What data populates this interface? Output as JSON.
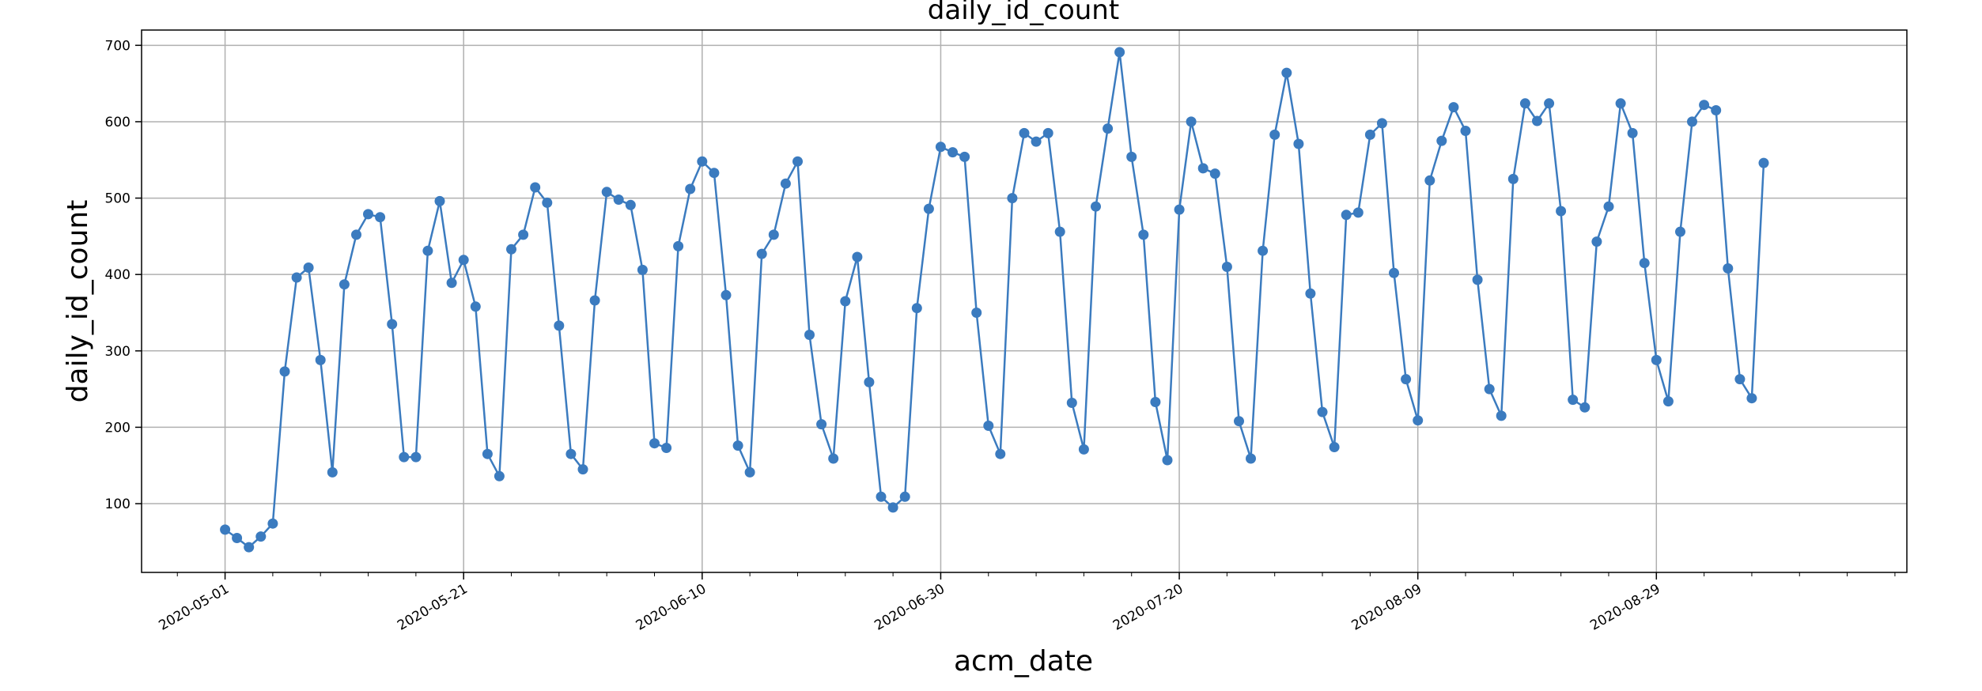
{
  "chart_data": {
    "type": "line",
    "title": "daily_id_count",
    "xlabel": "acm_date",
    "ylabel": "daily_id_count",
    "grid": true,
    "legend": false,
    "marker": "circle",
    "color": "#3b7bbf",
    "x_start": "2020-05-01",
    "xlim": [
      "2020-04-24",
      "2020-09-19"
    ],
    "ylim": [
      10,
      720
    ],
    "x_ticks": [
      "2020-05-01",
      "2020-05-21",
      "2020-06-10",
      "2020-06-30",
      "2020-07-20",
      "2020-08-09",
      "2020-08-29"
    ],
    "y_ticks": [
      100,
      200,
      300,
      400,
      500,
      600,
      700
    ],
    "series": [
      {
        "values": [
          66,
          55,
          43,
          57,
          74,
          273,
          396,
          409,
          288,
          141,
          387,
          452,
          479,
          475,
          335,
          161,
          161,
          431,
          496,
          389,
          419,
          358,
          165,
          136,
          433,
          452,
          514,
          494,
          333,
          165,
          145,
          366,
          508,
          498,
          491,
          406,
          179,
          173,
          437,
          512,
          548,
          533,
          373,
          176,
          141,
          427,
          452,
          519,
          548,
          321,
          204,
          159,
          365,
          423,
          259,
          109,
          95,
          109,
          356,
          486,
          567,
          560,
          554,
          350,
          202,
          165,
          500,
          585,
          574,
          585,
          456,
          232,
          171,
          489,
          591,
          691,
          554,
          452,
          233,
          157,
          485,
          600,
          539,
          532,
          410,
          208,
          159,
          431,
          583,
          664,
          571,
          375,
          220,
          174,
          478,
          481,
          583,
          598,
          402,
          263,
          209,
          523,
          575,
          619,
          588,
          393,
          250,
          215,
          525,
          624,
          601,
          624,
          483,
          236,
          226,
          443,
          489,
          624,
          585,
          415,
          288,
          234,
          456,
          600,
          622,
          615,
          408,
          263,
          238,
          546
        ]
      }
    ]
  }
}
